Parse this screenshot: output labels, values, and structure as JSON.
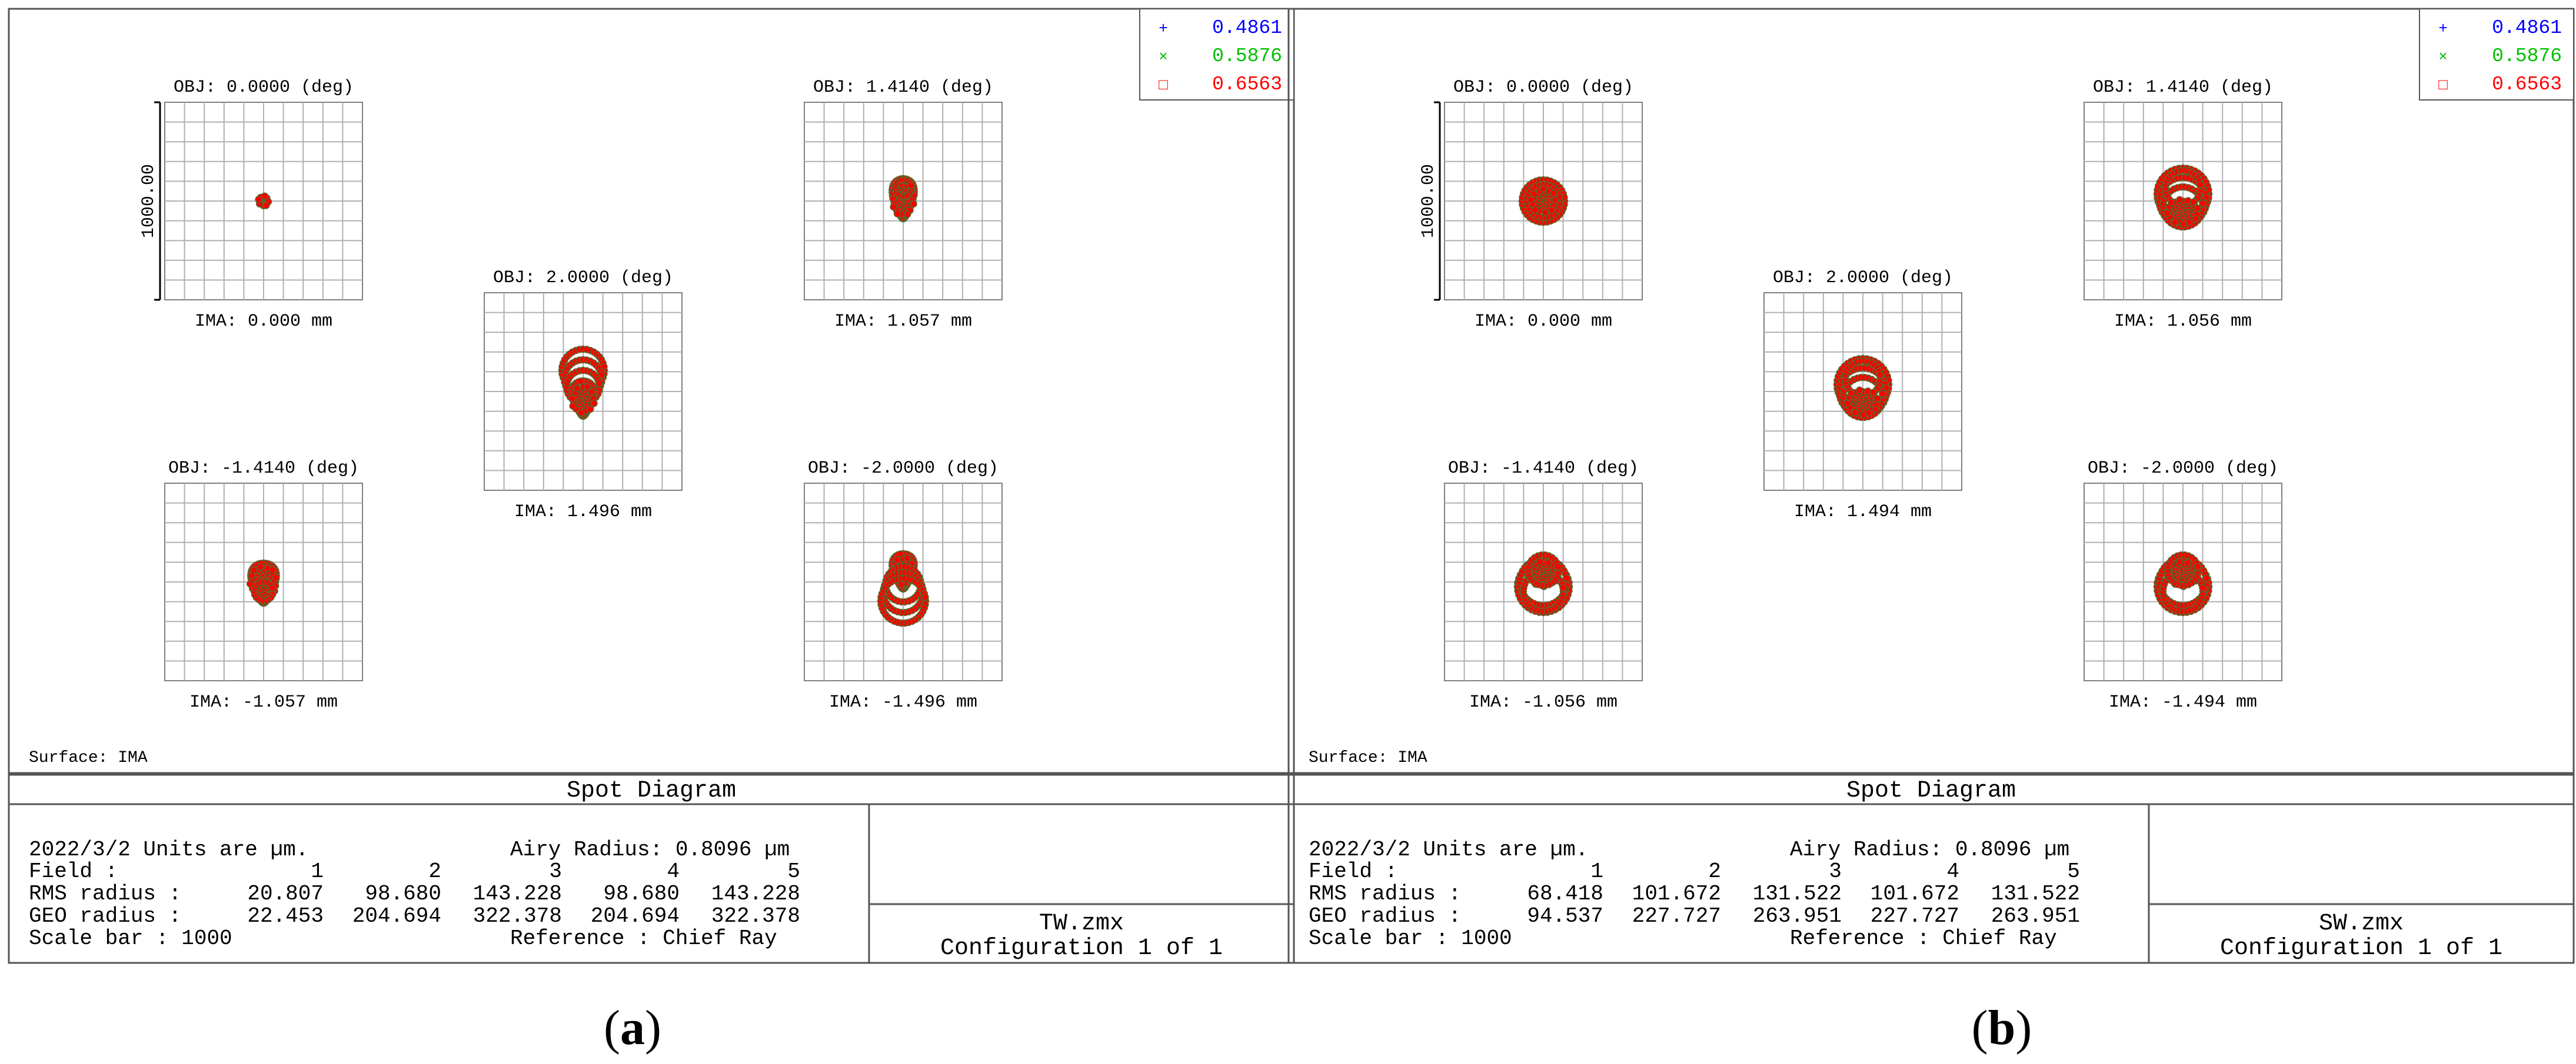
{
  "legend": [
    {
      "label": "0.4861",
      "color": "#0000ff",
      "symbol": "+"
    },
    {
      "label": "0.5876",
      "color": "#00c000",
      "symbol": "×"
    },
    {
      "label": "0.6563",
      "color": "#ff0000",
      "symbol": "□"
    }
  ],
  "colors": {
    "spot_red": "#ff0000",
    "spot_dark": "#556b2f",
    "grid": "#b0b0b0"
  },
  "panels": [
    {
      "id": "a",
      "caption_letter": "a",
      "surface": "Surface: IMA",
      "diagram_title": "Spot Diagram",
      "scale_label": "1000.00",
      "fields": [
        {
          "obj": "OBJ: 0.0000 (deg)",
          "ima": "IMA: 0.000 mm",
          "shape": "dot"
        },
        {
          "obj": "OBJ: 1.4140 (deg)",
          "ima": "IMA: 1.057 mm",
          "shape": "drop"
        },
        {
          "obj": "OBJ: 2.0000 (deg)",
          "ima": "IMA: 1.496 mm",
          "shape": "drop-rings"
        },
        {
          "obj": "OBJ: -1.4140 (deg)",
          "ima": "IMA: -1.057 mm",
          "shape": "drop-small"
        },
        {
          "obj": "OBJ: -2.0000 (deg)",
          "ima": "IMA: -1.496 mm",
          "shape": "drop-rings-inv"
        }
      ],
      "info": {
        "date_units": "2022/3/2  Units are µm.",
        "airy": "Airy Radius: 0.8096 µm",
        "field_label": "Field       :",
        "field_values": [
          "1",
          "2",
          "3",
          "4",
          "5"
        ],
        "rms_label": "RMS radius :",
        "rms_values": [
          "20.807",
          "98.680",
          "143.228",
          "98.680",
          "143.228"
        ],
        "geo_label": "GEO radius :",
        "geo_values": [
          "22.453",
          "204.694",
          "322.378",
          "204.694",
          "322.378"
        ],
        "scale_bar": "Scale bar  : 1000",
        "reference": "Reference  : Chief Ray",
        "filename": "TW.zmx",
        "configuration": "Configuration 1 of 1"
      }
    },
    {
      "id": "b",
      "caption_letter": "b",
      "surface": "Surface: IMA",
      "diagram_title": "Spot Diagram",
      "scale_label": "1000.00",
      "fields": [
        {
          "obj": "OBJ: 0.0000 (deg)",
          "ima": "IMA: 0.000 mm",
          "shape": "disc"
        },
        {
          "obj": "OBJ: 1.4140 (deg)",
          "ima": "IMA: 1.056 mm",
          "shape": "rings"
        },
        {
          "obj": "OBJ: 2.0000 (deg)",
          "ima": "IMA: 1.494 mm",
          "shape": "rings"
        },
        {
          "obj": "OBJ: -1.4140 (deg)",
          "ima": "IMA: -1.056 mm",
          "shape": "rings-down"
        },
        {
          "obj": "OBJ: -2.0000 (deg)",
          "ima": "IMA: -1.494 mm",
          "shape": "rings-down"
        }
      ],
      "info": {
        "date_units": "2022/3/2  Units are µm.",
        "airy": "Airy Radius: 0.8096 µm",
        "field_label": "Field       :",
        "field_values": [
          "1",
          "2",
          "3",
          "4",
          "5"
        ],
        "rms_label": "RMS radius :",
        "rms_values": [
          "68.418",
          "101.672",
          "131.522",
          "101.672",
          "131.522"
        ],
        "geo_label": "GEO radius :",
        "geo_values": [
          "94.537",
          "227.727",
          "263.951",
          "227.727",
          "263.951"
        ],
        "scale_bar": "Scale bar  : 1000",
        "reference": "Reference  : Chief Ray",
        "filename": "SW.zmx",
        "configuration": "Configuration 1 of 1"
      }
    }
  ]
}
